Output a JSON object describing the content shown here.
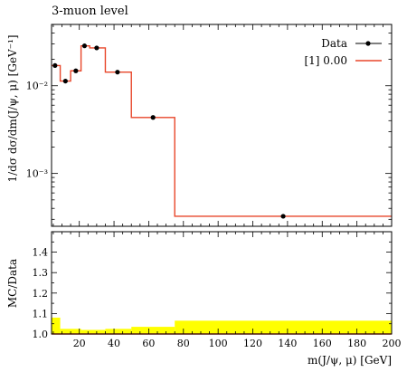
{
  "chart_data": {
    "type": "line",
    "title": "3-muon level",
    "ylabel": "1/dσ dσ/dm(J/ψ, μ) [GeV⁻¹]",
    "xlabel": "m(J/ψ, μ) [GeV]",
    "ratio_ylabel": "MC/Data",
    "xlim": [
      4,
      200
    ],
    "ylim": [
      0.00025,
      0.05
    ],
    "yscale": "log",
    "ratio_ylim": [
      1.0,
      1.5
    ],
    "x_ticks": [
      20,
      40,
      60,
      80,
      100,
      120,
      140,
      160,
      180,
      200
    ],
    "y_ticks_major": [
      {
        "value": 0.001,
        "label": "10⁻³"
      },
      {
        "value": 0.01,
        "label": "10⁻²"
      }
    ],
    "ratio_ticks": [
      {
        "value": 1.0,
        "label": "1.0"
      },
      {
        "value": 1.1,
        "label": "1.1"
      },
      {
        "value": 1.2,
        "label": "1.2"
      },
      {
        "value": 1.3,
        "label": "1.3"
      },
      {
        "value": 1.4,
        "label": "1.4"
      }
    ],
    "legend_position": "top-right",
    "data_series": {
      "name": "Data",
      "color": "#000000",
      "points": [
        {
          "x": 6,
          "y": 0.017
        },
        {
          "x": 12,
          "y": 0.0113
        },
        {
          "x": 18,
          "y": 0.0148
        },
        {
          "x": 23,
          "y": 0.0285
        },
        {
          "x": 30,
          "y": 0.027
        },
        {
          "x": 42,
          "y": 0.0143
        },
        {
          "x": 62.5,
          "y": 0.00435
        },
        {
          "x": 137.5,
          "y": 0.000325
        }
      ]
    },
    "mc_series": {
      "name": "[1] 0.00",
      "color": "#e8462a",
      "bins": [
        {
          "lo": 4,
          "hi": 9,
          "y": 0.017
        },
        {
          "lo": 9,
          "hi": 15,
          "y": 0.0113
        },
        {
          "lo": 15,
          "hi": 21,
          "y": 0.0148
        },
        {
          "lo": 21,
          "hi": 26,
          "y": 0.0285
        },
        {
          "lo": 26,
          "hi": 35,
          "y": 0.027
        },
        {
          "lo": 35,
          "hi": 50,
          "y": 0.0143
        },
        {
          "lo": 50,
          "hi": 75,
          "y": 0.00435
        },
        {
          "lo": 75,
          "hi": 200,
          "y": 0.000325
        }
      ]
    },
    "ratio_band": {
      "color": "#ffff00",
      "bins": [
        {
          "lo": 4,
          "hi": 9,
          "hi_val": 1.08
        },
        {
          "lo": 9,
          "hi": 21,
          "hi_val": 1.025
        },
        {
          "lo": 21,
          "hi": 35,
          "hi_val": 1.02
        },
        {
          "lo": 35,
          "hi": 50,
          "hi_val": 1.025
        },
        {
          "lo": 50,
          "hi": 75,
          "hi_val": 1.035
        },
        {
          "lo": 75,
          "hi": 200,
          "hi_val": 1.065
        }
      ]
    }
  }
}
